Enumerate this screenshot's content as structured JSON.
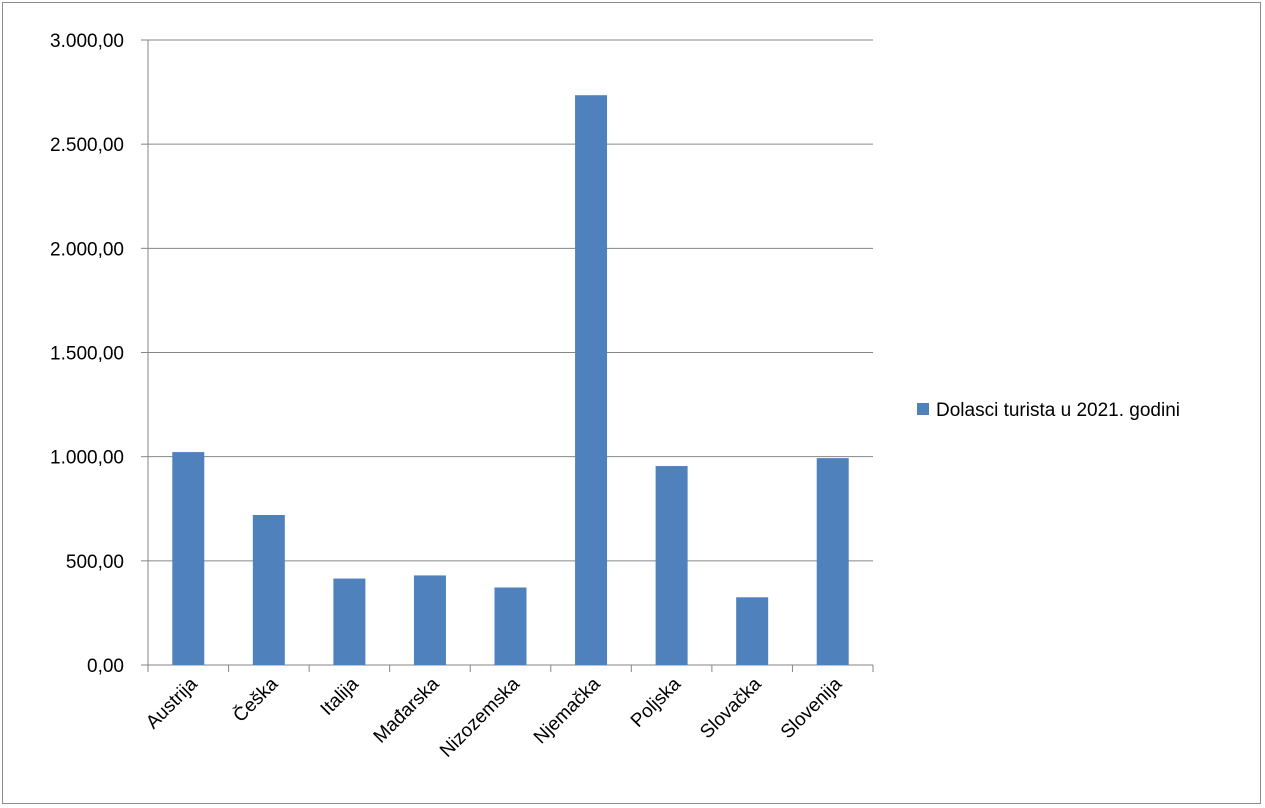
{
  "chart_data": {
    "type": "bar",
    "categories": [
      "Austrija",
      "Češka",
      "Italija",
      "Mađarska",
      "Nizozemska",
      "Njemačka",
      "Poljska",
      "Slovačka",
      "Slovenija"
    ],
    "series": [
      {
        "name": "Dolasci turista u 2021. godini",
        "values": [
          1022,
          720,
          415,
          430,
          372,
          2735,
          955,
          325,
          993
        ],
        "color": "#4f81bd"
      }
    ],
    "ylim": [
      0,
      3000
    ],
    "yticks": [
      0,
      500,
      1000,
      1500,
      2000,
      2500,
      3000
    ],
    "ytick_labels": [
      "0,00",
      "500,00",
      "1.000,00",
      "1.500,00",
      "2.000,00",
      "2.500,00",
      "3.000,00"
    ],
    "grid": true,
    "legend_position": "right",
    "title": "",
    "xlabel": "",
    "ylabel": ""
  }
}
